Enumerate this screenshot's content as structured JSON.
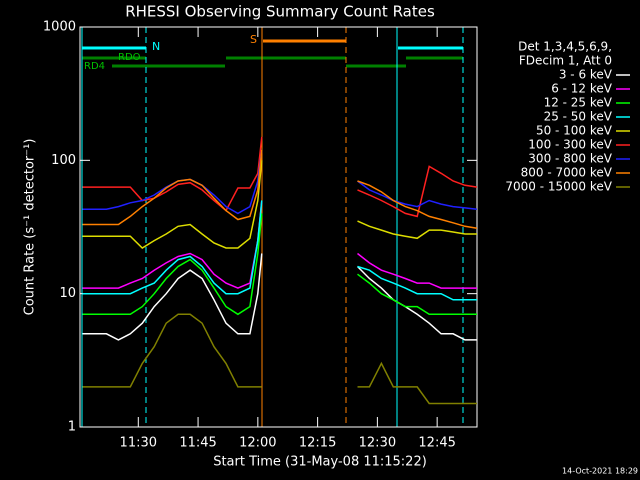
{
  "chart_data": {
    "type": "line",
    "title": "RHESSI Observing Summary Count Rates",
    "x_label": "Start Time (31-May-08 11:15:22)",
    "y_label": "Count Rate (s⁻¹ detector⁻¹)",
    "legend_header": [
      "Det 1,3,4,5,6,9,",
      "FDecim 1, Att 0"
    ],
    "flags": {
      "night": "N",
      "saa": "S",
      "rd0": "RDO",
      "rd4": "RD4"
    },
    "timestamp": "14-Oct-2021 18:29",
    "yscale": "log",
    "ylim": [
      1,
      1000
    ],
    "yticks": [
      1,
      10,
      100,
      1000
    ],
    "xlim": [
      675.37,
      775
    ],
    "xticks": [
      {
        "value": 690,
        "label": "11:30"
      },
      {
        "value": 705,
        "label": "11:45"
      },
      {
        "value": 720,
        "label": "12:00"
      },
      {
        "value": 735,
        "label": "12:15"
      },
      {
        "value": 750,
        "label": "12:30"
      },
      {
        "value": 765,
        "label": "12:45"
      }
    ],
    "x": [
      676,
      679,
      682,
      685,
      688,
      691,
      694,
      697,
      700,
      703,
      706,
      709,
      712,
      715,
      718,
      720,
      721,
      733,
      745,
      748,
      751,
      754,
      757,
      760,
      763,
      766,
      769,
      772,
      775
    ],
    "series": [
      {
        "name": "3 - 6 keV",
        "color": "#ffffff",
        "values": [
          5,
          5,
          5,
          4.5,
          5,
          6,
          8,
          10,
          13,
          15,
          13,
          9,
          6,
          5,
          5,
          10,
          20,
          null,
          16,
          13,
          11,
          9,
          8,
          7,
          6,
          5,
          5,
          4.5,
          4.5
        ]
      },
      {
        "name": "6 - 12 keV",
        "color": "#ff00ff",
        "values": [
          11,
          11,
          11,
          11,
          12,
          13,
          15,
          17,
          19,
          20,
          18,
          14,
          12,
          11,
          12,
          25,
          50,
          null,
          20,
          17,
          15,
          14,
          13,
          12,
          12,
          11,
          11,
          11,
          11
        ]
      },
      {
        "name": "12 - 25 keV",
        "color": "#00ff00",
        "values": [
          7,
          7,
          7,
          7,
          7,
          8,
          10,
          13,
          16,
          18,
          15,
          11,
          8,
          7,
          8,
          20,
          40,
          null,
          14,
          12,
          10,
          9,
          8,
          8,
          7,
          7,
          7,
          7,
          7
        ]
      },
      {
        "name": "25 - 50 keV",
        "color": "#00ffff",
        "values": [
          10,
          10,
          10,
          10,
          10,
          11,
          12,
          15,
          18,
          19,
          16,
          12,
          10,
          10,
          11,
          25,
          50,
          null,
          16,
          15,
          13,
          12,
          11,
          10,
          10,
          10,
          9,
          9,
          9
        ]
      },
      {
        "name": "50 - 100 keV",
        "color": "#dddd00",
        "values": [
          27,
          27,
          27,
          27,
          27,
          22,
          25,
          28,
          32,
          33,
          28,
          24,
          22,
          22,
          26,
          50,
          100,
          null,
          35,
          32,
          30,
          28,
          27,
          26,
          30,
          30,
          29,
          28,
          28
        ]
      },
      {
        "name": "100 - 300 keV",
        "color": "#ff2020",
        "values": [
          63,
          63,
          63,
          63,
          63,
          50,
          52,
          58,
          66,
          68,
          60,
          50,
          42,
          62,
          62,
          80,
          150,
          null,
          60,
          55,
          50,
          45,
          40,
          38,
          90,
          80,
          70,
          65,
          63
        ]
      },
      {
        "name": "300 - 800 keV",
        "color": "#2020ff",
        "values": [
          43,
          43,
          43,
          45,
          48,
          50,
          55,
          63,
          70,
          72,
          65,
          55,
          45,
          40,
          45,
          70,
          120,
          null,
          70,
          60,
          55,
          50,
          47,
          45,
          50,
          47,
          45,
          44,
          43
        ]
      },
      {
        "name": "800 - 7000 keV",
        "color": "#ff8000",
        "values": [
          33,
          33,
          33,
          33,
          38,
          45,
          52,
          62,
          70,
          72,
          65,
          52,
          42,
          36,
          38,
          60,
          120,
          null,
          70,
          65,
          58,
          50,
          45,
          42,
          38,
          36,
          34,
          32,
          31
        ]
      },
      {
        "name": "7000 - 15000 keV",
        "color": "#808000",
        "values": [
          2,
          2,
          2,
          2,
          2,
          3,
          4,
          6,
          7,
          7,
          6,
          4,
          3,
          2,
          2,
          2,
          2,
          null,
          2,
          2,
          3,
          2,
          2,
          2,
          1.5,
          1.5,
          1.5,
          1.5,
          1.5
        ]
      }
    ]
  }
}
